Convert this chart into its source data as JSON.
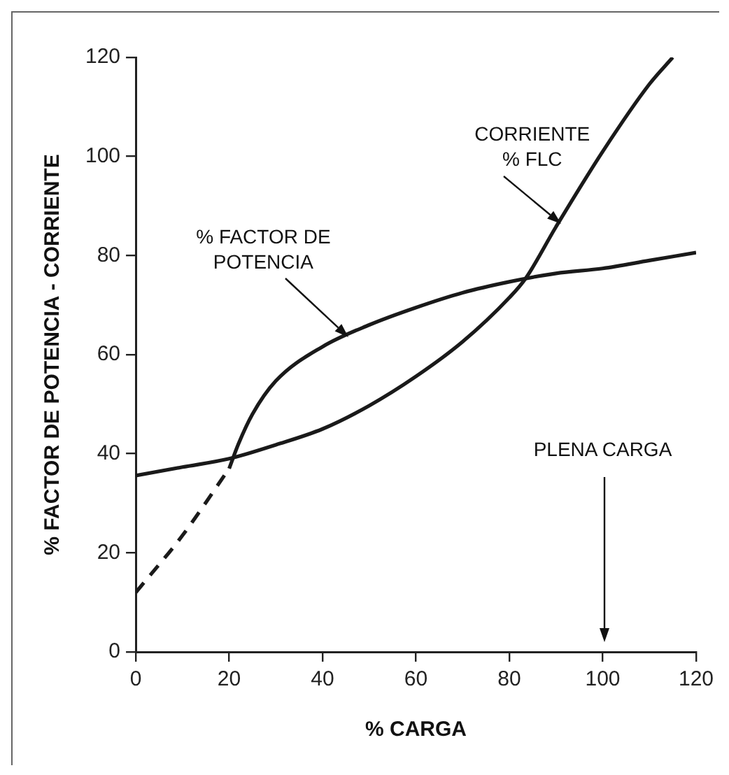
{
  "chart_data": {
    "type": "line",
    "xlabel": "% CARGA",
    "ylabel": "% FACTOR DE POTENCIA - CORRIENTE",
    "xlim": [
      0,
      120
    ],
    "ylim": [
      0,
      120
    ],
    "xticks": [
      0,
      20,
      40,
      60,
      80,
      100,
      120
    ],
    "yticks": [
      0,
      20,
      40,
      60,
      80,
      100,
      120
    ],
    "grid": false,
    "legend": false,
    "marker": "none",
    "series": [
      {
        "color": "#1a1a1a",
        "line_style": "solid",
        "x": [
          0,
          10,
          20,
          30,
          40,
          50,
          60,
          70,
          80,
          83.5,
          90,
          100,
          110,
          115
        ],
        "values": [
          35.6,
          37.3,
          39,
          41.8,
          45,
          49.7,
          55.6,
          62.6,
          71.5,
          75.4,
          85.8,
          101,
          114.6,
          120
        ]
      },
      {
        "color": "#1a1a1a",
        "line_style": "dashed",
        "x": [
          0,
          10,
          20
        ],
        "values": [
          12,
          23.5,
          37
        ]
      },
      {
        "color": "#1a1a1a",
        "line_style": "solid",
        "x": [
          20,
          22,
          25,
          30,
          40,
          50,
          60,
          70,
          80,
          90,
          100,
          110,
          120
        ],
        "values": [
          37,
          42,
          48,
          54.7,
          61.6,
          66,
          69.5,
          72.5,
          74.7,
          76.4,
          77.4,
          79,
          80.6
        ]
      }
    ],
    "annotations": [
      {
        "text": "% FACTOR DE\nPOTENCIA",
        "x": 45.3,
        "y": 63.8
      },
      {
        "text": "CORRIENTE\n% FLC",
        "x": 90.9,
        "y": 86.8
      },
      "PLENA CARGA"
    ]
  }
}
